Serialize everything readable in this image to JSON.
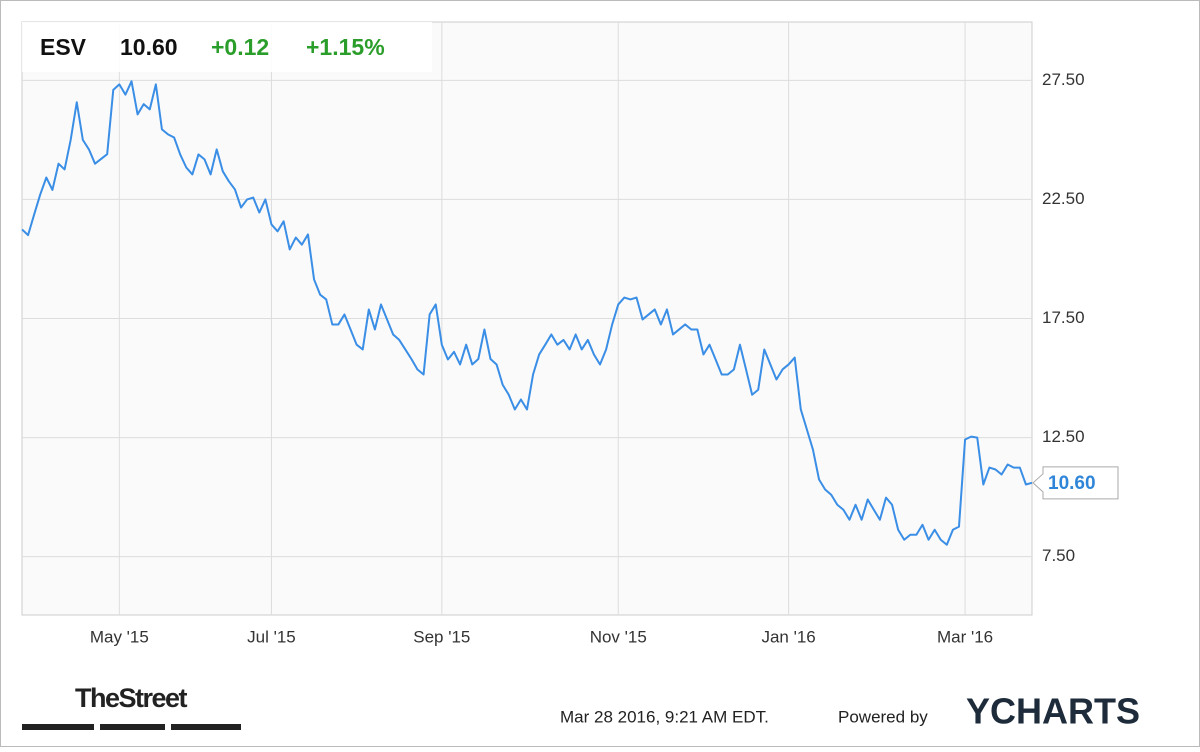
{
  "header": {
    "ticker": "ESV",
    "price": "10.60",
    "change": "+0.12",
    "change_pct": "+1.15%"
  },
  "chart_data": {
    "type": "line",
    "color": "#3a8ee6",
    "grid": true,
    "categories": [
      null,
      null,
      null,
      null,
      null,
      null,
      null,
      null,
      null,
      null,
      null,
      null,
      null,
      null,
      null,
      null,
      "May '15",
      null,
      null,
      null,
      null,
      null,
      null,
      null,
      null,
      null,
      null,
      null,
      null,
      null,
      null,
      null,
      null,
      null,
      null,
      null,
      null,
      null,
      null,
      null,
      null,
      "Jul '15",
      null,
      null,
      null,
      null,
      null,
      null,
      null,
      null,
      null,
      null,
      null,
      null,
      null,
      null,
      null,
      null,
      null,
      null,
      null,
      null,
      null,
      null,
      null,
      null,
      null,
      null,
      null,
      "Sep '15",
      null,
      null,
      null,
      null,
      null,
      null,
      null,
      null,
      null,
      null,
      null,
      null,
      null,
      null,
      null,
      null,
      null,
      null,
      null,
      null,
      null,
      null,
      null,
      null,
      null,
      null,
      null,
      null,
      "Nov '15",
      null,
      null,
      null,
      null,
      null,
      null,
      null,
      null,
      null,
      null,
      null,
      null,
      null,
      null,
      null,
      null,
      null,
      null,
      null,
      null,
      null,
      null,
      null,
      null,
      null,
      null,
      null,
      "Jan '16",
      null,
      null,
      null,
      null,
      null,
      null,
      null,
      null,
      null,
      null,
      null,
      null,
      null,
      null,
      null,
      null,
      null,
      null,
      null,
      null,
      null,
      null,
      null,
      null,
      null,
      null,
      null,
      null,
      "Mar '16",
      null,
      null,
      null,
      null,
      null,
      null,
      null,
      null,
      null,
      null,
      null
    ],
    "values": [
      21.24,
      21.0,
      21.87,
      22.71,
      23.42,
      22.9,
      24.0,
      23.76,
      25.0,
      26.58,
      25.0,
      24.6,
      24.0,
      24.2,
      24.4,
      27.1,
      27.33,
      26.9,
      27.46,
      26.07,
      26.5,
      26.28,
      27.33,
      25.44,
      25.23,
      25.1,
      24.39,
      23.84,
      23.55,
      24.39,
      24.18,
      23.55,
      24.6,
      23.68,
      23.26,
      22.92,
      22.16,
      22.5,
      22.58,
      21.95,
      22.5,
      21.45,
      21.16,
      21.58,
      20.4,
      20.9,
      20.6,
      21.03,
      19.14,
      18.5,
      18.3,
      17.25,
      17.25,
      17.67,
      17.04,
      16.4,
      16.2,
      17.88,
      17.04,
      18.09,
      17.46,
      16.83,
      16.6,
      16.2,
      15.8,
      15.36,
      15.15,
      17.67,
      18.09,
      16.4,
      15.78,
      16.1,
      15.57,
      16.4,
      15.57,
      15.8,
      17.04,
      15.8,
      15.57,
      14.72,
      14.3,
      13.68,
      14.1,
      13.68,
      15.15,
      15.99,
      16.4,
      16.83,
      16.4,
      16.6,
      16.2,
      16.83,
      16.2,
      16.6,
      15.99,
      15.57,
      16.2,
      17.25,
      18.09,
      18.38,
      18.3,
      18.38,
      17.46,
      17.67,
      17.88,
      17.25,
      17.88,
      16.83,
      17.04,
      17.25,
      17.04,
      17.04,
      15.99,
      16.4,
      15.78,
      15.15,
      15.15,
      15.36,
      16.4,
      15.36,
      14.3,
      14.51,
      16.2,
      15.57,
      14.94,
      15.36,
      15.57,
      15.86,
      13.68,
      12.84,
      11.99,
      10.74,
      10.32,
      10.1,
      9.68,
      9.47,
      9.05,
      9.68,
      9.05,
      9.9,
      9.47,
      9.05,
      9.98,
      9.68,
      8.63,
      8.21,
      8.42,
      8.42,
      8.84,
      8.21,
      8.63,
      8.21,
      8.0,
      8.63,
      8.76,
      12.42,
      12.54,
      12.5,
      10.53,
      11.24,
      11.16,
      10.95,
      11.37,
      11.24,
      11.24,
      10.53,
      10.6
    ],
    "ylim": [
      5.05,
      29.95
    ],
    "yticks": [
      {
        "value": 7.5,
        "label": "7.50"
      },
      {
        "value": 12.5,
        "label": "12.50"
      },
      {
        "value": 17.5,
        "label": "17.50"
      },
      {
        "value": 22.5,
        "label": "22.50"
      },
      {
        "value": 27.5,
        "label": "27.50"
      }
    ]
  },
  "footer": {
    "brand": "TheStreet",
    "timestamp": "Mar 28 2016, 9:21 AM EDT.",
    "powered": "Powered by",
    "logo": "YCHARTS"
  }
}
